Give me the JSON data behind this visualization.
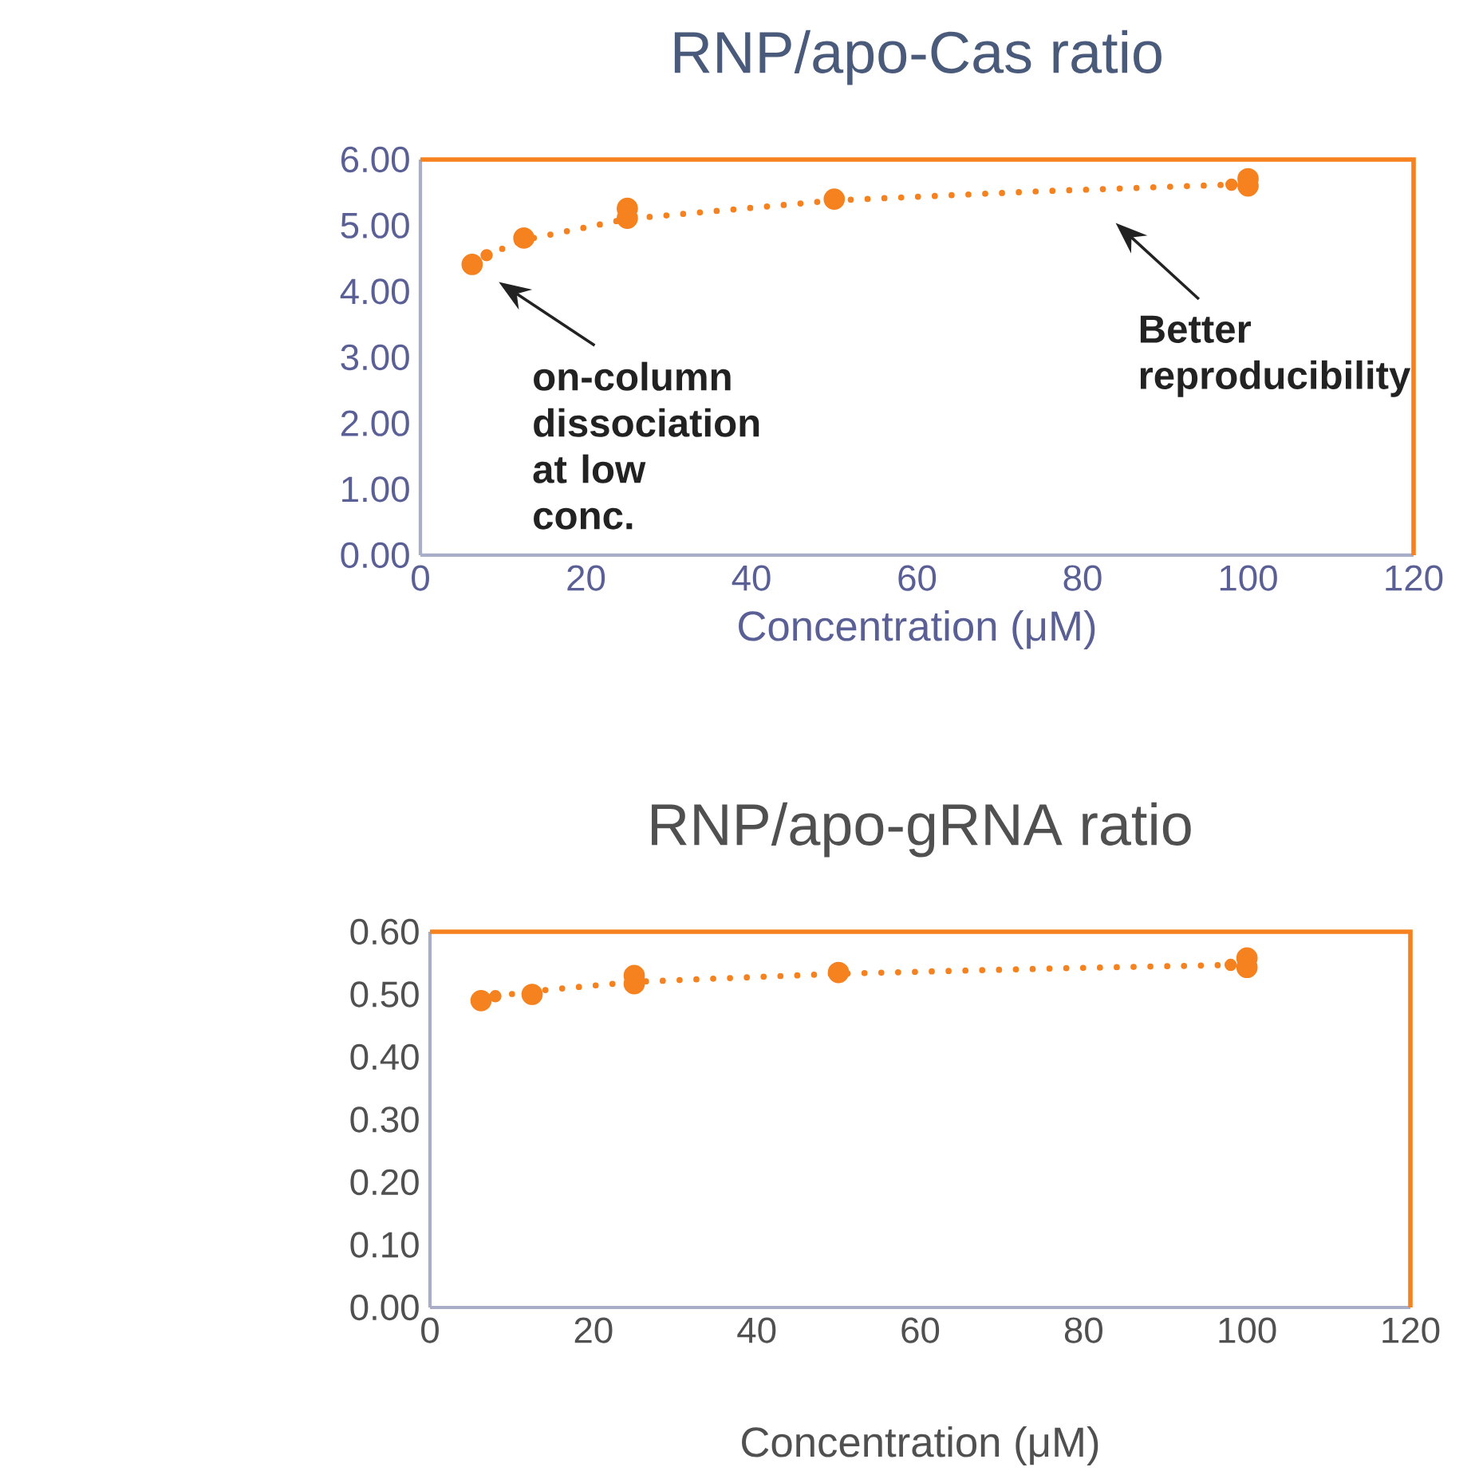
{
  "chart_data": [
    {
      "type": "scatter",
      "title": "RNP/apo-Cas ratio",
      "xlabel": "Concentration (μM)",
      "xlim": [
        0,
        120
      ],
      "xticks": [
        0,
        20,
        40,
        60,
        80,
        100,
        120
      ],
      "ylim": [
        0,
        6
      ],
      "yticks": [
        {
          "value": 0,
          "label": "0.00"
        },
        {
          "value": 1,
          "label": "1.00"
        },
        {
          "value": 2,
          "label": "2.00"
        },
        {
          "value": 3,
          "label": "3.00"
        },
        {
          "value": 4,
          "label": "4.00"
        },
        {
          "value": 5,
          "label": "5.00"
        },
        {
          "value": 6,
          "label": "6.00"
        }
      ],
      "series": [
        {
          "color": "#f5821f",
          "marker": "circle",
          "x": [
            6.25,
            12.5,
            25,
            25,
            50,
            100,
            100
          ],
          "values": [
            4.41,
            4.81,
            5.26,
            5.11,
            5.4,
            5.71,
            5.6
          ]
        },
        {
          "type": "line",
          "color": "#f5821f",
          "line_style": "dotted",
          "marker": "none",
          "x": [
            8,
            12.5,
            25,
            50,
            75,
            98
          ],
          "values": [
            4.55,
            4.78,
            5.1,
            5.38,
            5.52,
            5.62
          ]
        }
      ],
      "annotations": [
        {
          "text": "on-column dissociation at low conc.",
          "x": 6.25,
          "y": 4.41
        },
        "Better reproducibility"
      ]
    },
    {
      "type": "scatter",
      "title": "RNP/apo-gRNA ratio",
      "xlabel": "Concentration (μM)",
      "xlim": [
        0,
        120
      ],
      "xticks": [
        0,
        20,
        40,
        60,
        80,
        100,
        120
      ],
      "ylim": [
        0,
        0.6
      ],
      "yticks": [
        {
          "value": 0,
          "label": "0.00"
        },
        {
          "value": 0.1,
          "label": "0.10"
        },
        {
          "value": 0.2,
          "label": "0.20"
        },
        {
          "value": 0.3,
          "label": "0.30"
        },
        {
          "value": 0.4,
          "label": "0.40"
        },
        {
          "value": 0.5,
          "label": "0.50"
        },
        {
          "value": 0.6,
          "label": "0.60"
        }
      ],
      "series": [
        {
          "color": "#f5821f",
          "marker": "circle",
          "x": [
            6.25,
            12.5,
            25,
            25,
            50,
            100,
            100
          ],
          "values": [
            0.49,
            0.5,
            0.53,
            0.517,
            0.535,
            0.558,
            0.543
          ]
        },
        {
          "type": "line",
          "color": "#f5821f",
          "line_style": "dotted",
          "marker": "none",
          "x": [
            8,
            12.5,
            25,
            50,
            75,
            98
          ],
          "values": [
            0.497,
            0.505,
            0.52,
            0.533,
            0.541,
            0.547
          ]
        }
      ]
    }
  ]
}
